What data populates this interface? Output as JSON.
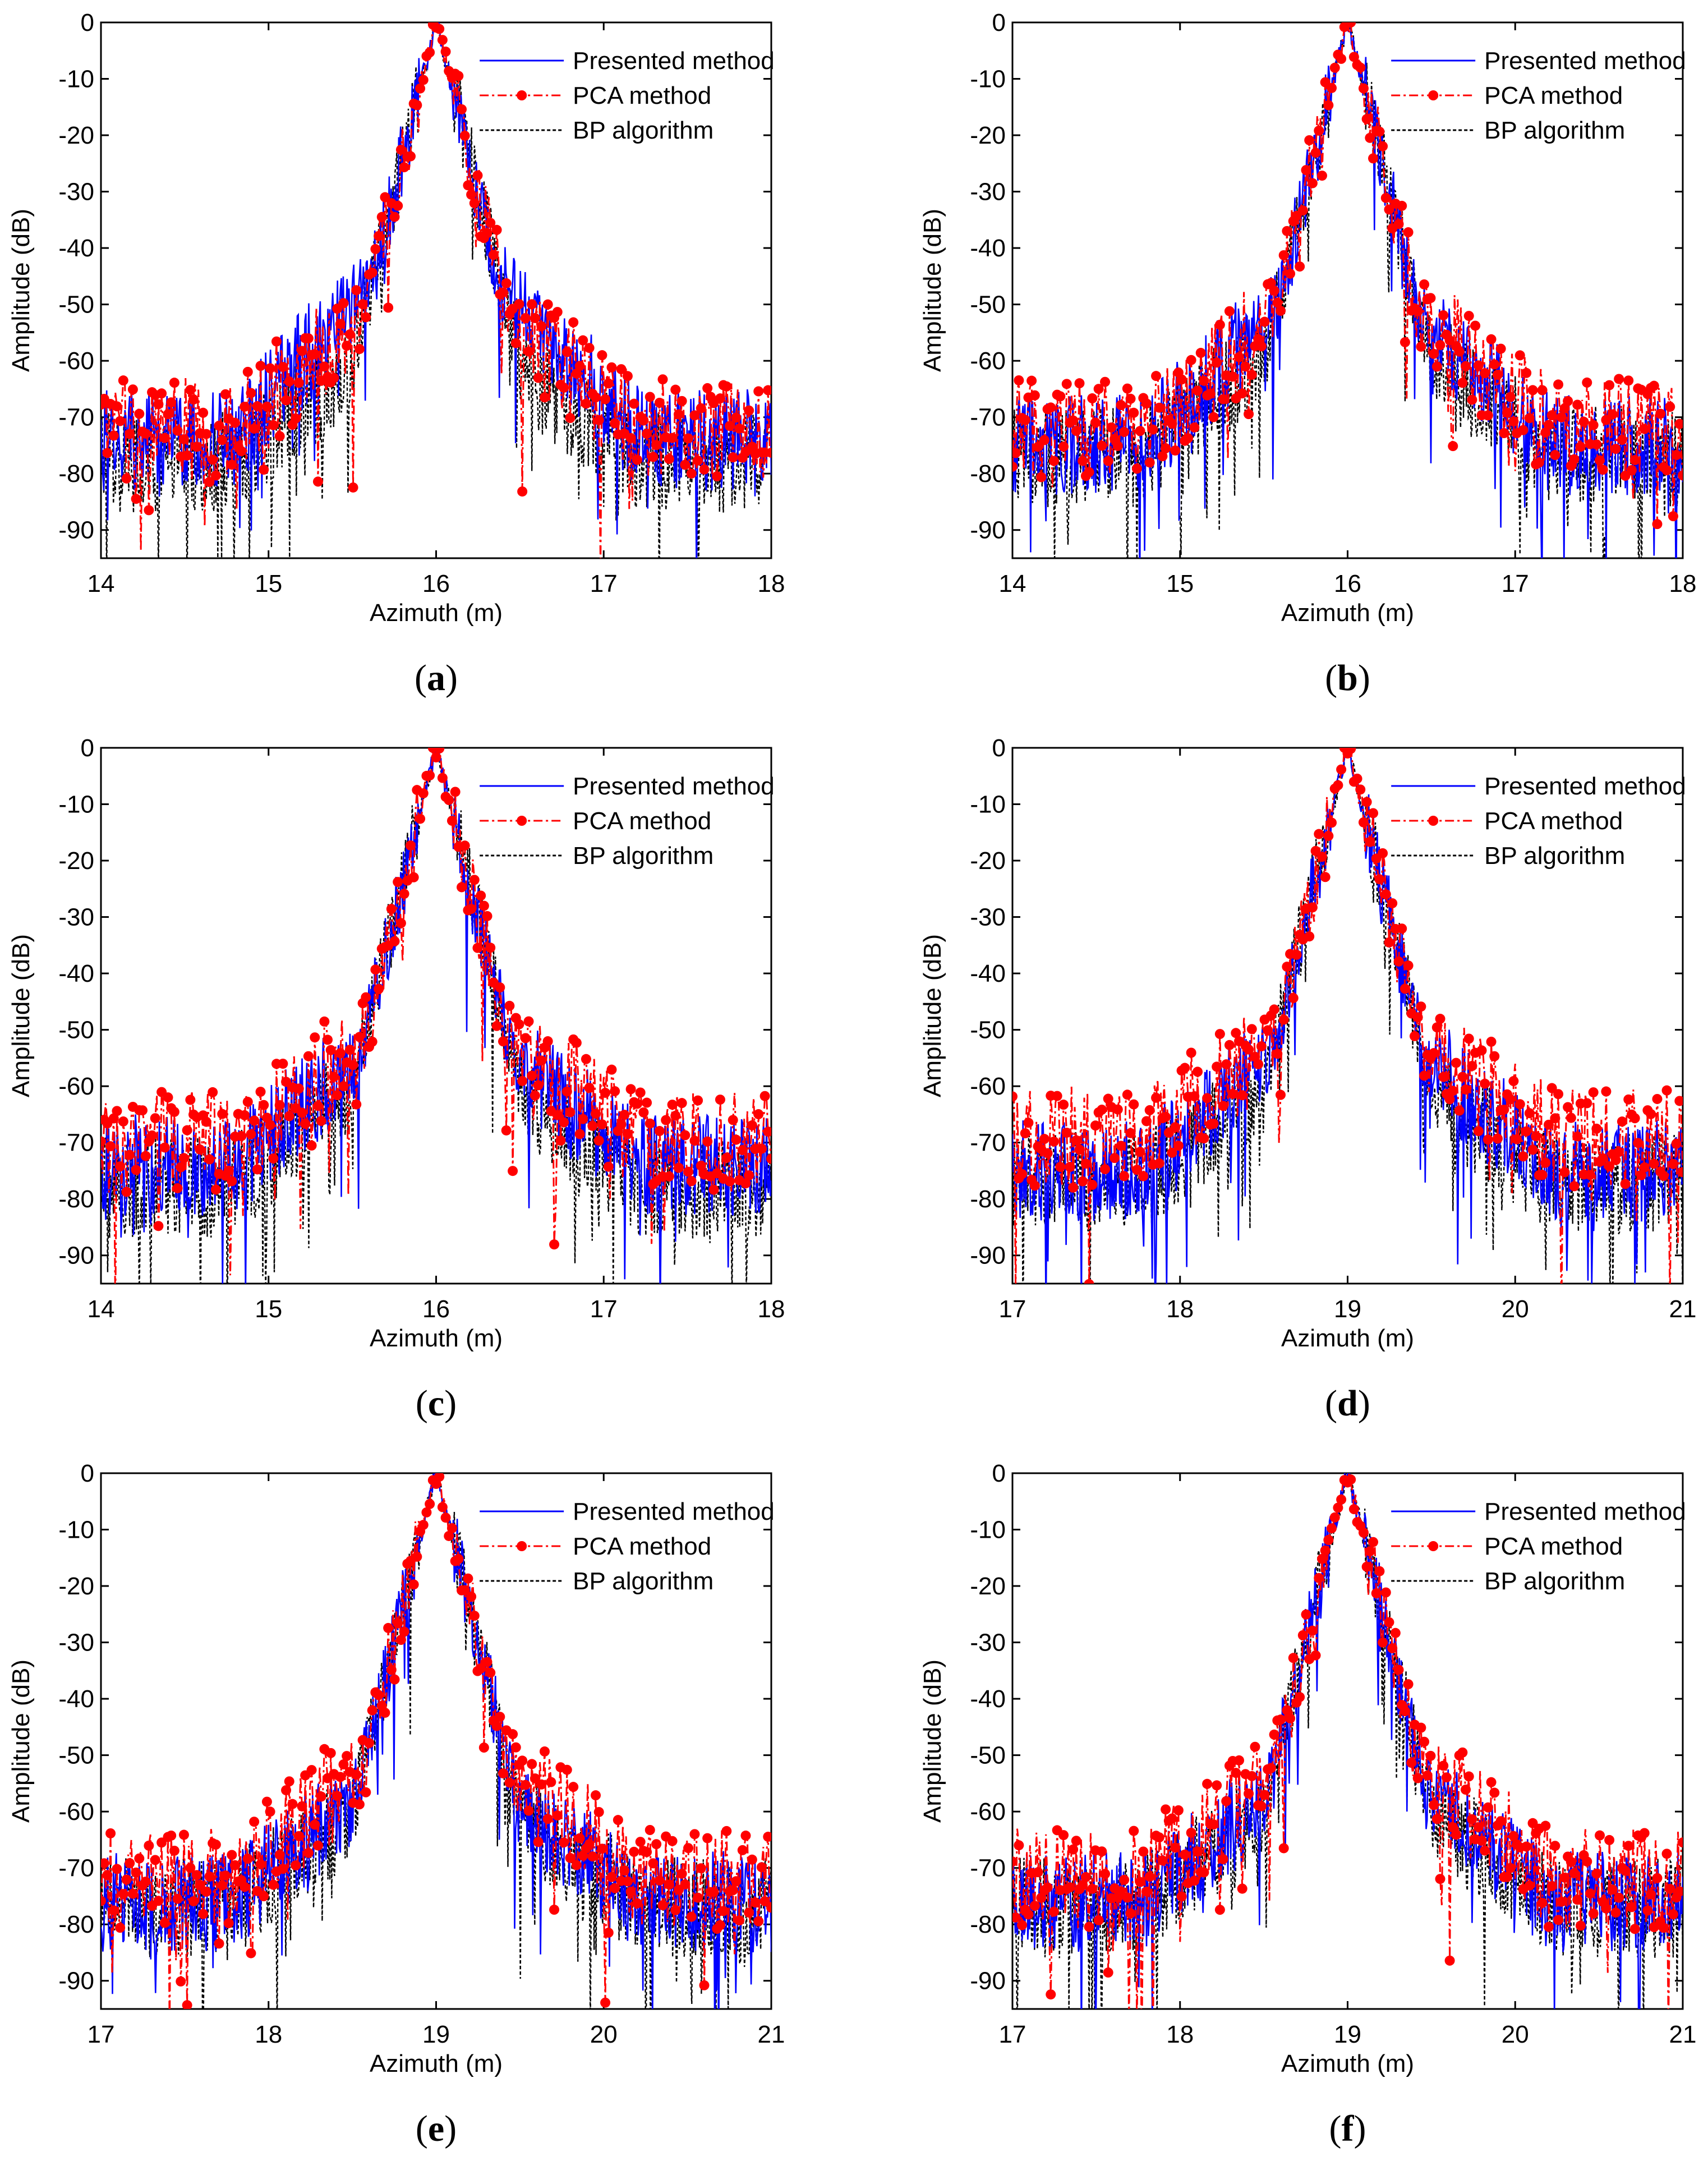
{
  "figure": {
    "legend": [
      {
        "label": "Presented method",
        "color": "#0000ff",
        "style": "solid"
      },
      {
        "label": "PCA method",
        "color": "#ff0000",
        "style": "dash-dot-marker"
      },
      {
        "label": "BP algorithm",
        "color": "#000000",
        "style": "dotted"
      }
    ]
  },
  "chart_data": [
    {
      "type": "line",
      "panel_label": "(a)",
      "caption_letter": "a",
      "xlabel": "Azimuth (m)",
      "ylabel": "Amplitude (dB)",
      "xlim": [
        14,
        18
      ],
      "ylim": [
        -95,
        0
      ],
      "xticks": [
        14,
        15,
        16,
        17,
        18
      ],
      "yticks": [
        0,
        -10,
        -20,
        -30,
        -40,
        -50,
        -60,
        -70,
        -80,
        -90
      ],
      "peak_x": 16,
      "shoulders": {
        "presented": -37,
        "pca": -45,
        "bp": -52
      },
      "series": [
        {
          "name": "Presented method",
          "floor_db": -74,
          "peak_db": 0
        },
        {
          "name": "PCA method",
          "floor_db": -72,
          "peak_db": 0
        },
        {
          "name": "BP algorithm",
          "floor_db": -78,
          "peak_db": 0
        }
      ]
    },
    {
      "type": "line",
      "panel_label": "(b)",
      "caption_letter": "b",
      "xlabel": "Azimuth (m)",
      "ylabel": "Amplitude (dB)",
      "xlim": [
        14,
        18
      ],
      "ylim": [
        -95,
        0
      ],
      "xticks": [
        14,
        15,
        16,
        17,
        18
      ],
      "yticks": [
        0,
        -10,
        -20,
        -30,
        -40,
        -50,
        -60,
        -70,
        -80,
        -90
      ],
      "peak_x": 16,
      "shoulders": {
        "presented": -42,
        "pca": -44,
        "bp": -50
      },
      "series": [
        {
          "name": "Presented method",
          "floor_db": -75,
          "peak_db": 0
        },
        {
          "name": "PCA method",
          "floor_db": -72,
          "peak_db": 0
        },
        {
          "name": "BP algorithm",
          "floor_db": -77,
          "peak_db": 0
        }
      ]
    },
    {
      "type": "line",
      "panel_label": "(c)",
      "caption_letter": "c",
      "xlabel": "Azimuth (m)",
      "ylabel": "Amplitude (dB)",
      "xlim": [
        14,
        18
      ],
      "ylim": [
        -95,
        0
      ],
      "xticks": [
        14,
        15,
        16,
        17,
        18
      ],
      "yticks": [
        0,
        -10,
        -20,
        -30,
        -40,
        -50,
        -60,
        -70,
        -80,
        -90
      ],
      "peak_x": 16,
      "shoulders": {
        "presented": -46,
        "pca": -44,
        "bp": -52
      },
      "series": [
        {
          "name": "Presented method",
          "floor_db": -74,
          "peak_db": 0
        },
        {
          "name": "PCA method",
          "floor_db": -70,
          "peak_db": 0
        },
        {
          "name": "BP algorithm",
          "floor_db": -78,
          "peak_db": 0
        }
      ]
    },
    {
      "type": "line",
      "panel_label": "(d)",
      "caption_letter": "d",
      "xlabel": "Azimuth (m)",
      "ylabel": "Amplitude (dB)",
      "xlim": [
        17,
        21
      ],
      "ylim": [
        -95,
        0
      ],
      "xticks": [
        17,
        18,
        19,
        20,
        21
      ],
      "yticks": [
        0,
        -10,
        -20,
        -30,
        -40,
        -50,
        -60,
        -70,
        -80,
        -90
      ],
      "peak_x": 19,
      "shoulders": {
        "presented": -46,
        "pca": -45,
        "bp": -52
      },
      "series": [
        {
          "name": "Presented method",
          "floor_db": -75,
          "peak_db": 0
        },
        {
          "name": "PCA method",
          "floor_db": -69,
          "peak_db": 0
        },
        {
          "name": "BP algorithm",
          "floor_db": -77,
          "peak_db": 0
        }
      ]
    },
    {
      "type": "line",
      "panel_label": "(e)",
      "caption_letter": "e",
      "xlabel": "Azimuth (m)",
      "ylabel": "Amplitude (dB)",
      "xlim": [
        17,
        21
      ],
      "ylim": [
        -95,
        0
      ],
      "xticks": [
        17,
        18,
        19,
        20,
        21
      ],
      "yticks": [
        0,
        -10,
        -20,
        -30,
        -40,
        -50,
        -60,
        -70,
        -80,
        -90
      ],
      "peak_x": 19,
      "shoulders": {
        "presented": -50,
        "pca": -44,
        "bp": -52
      },
      "series": [
        {
          "name": "Presented method",
          "floor_db": -76,
          "peak_db": 0
        },
        {
          "name": "PCA method",
          "floor_db": -72,
          "peak_db": 0
        },
        {
          "name": "BP algorithm",
          "floor_db": -77,
          "peak_db": 0
        }
      ]
    },
    {
      "type": "line",
      "panel_label": "(f)",
      "caption_letter": "f",
      "xlabel": "Azimuth (m)",
      "ylabel": "Amplitude (dB)",
      "xlim": [
        17,
        21
      ],
      "ylim": [
        -95,
        0
      ],
      "xticks": [
        17,
        18,
        19,
        20,
        21
      ],
      "yticks": [
        0,
        -10,
        -20,
        -30,
        -40,
        -50,
        -60,
        -70,
        -80,
        -90
      ],
      "peak_x": 19,
      "shoulders": {
        "presented": -48,
        "pca": -44,
        "bp": -52
      },
      "series": [
        {
          "name": "Presented method",
          "floor_db": -76,
          "peak_db": 0
        },
        {
          "name": "PCA method",
          "floor_db": -72,
          "peak_db": 0
        },
        {
          "name": "BP algorithm",
          "floor_db": -77,
          "peak_db": 0
        }
      ]
    }
  ]
}
